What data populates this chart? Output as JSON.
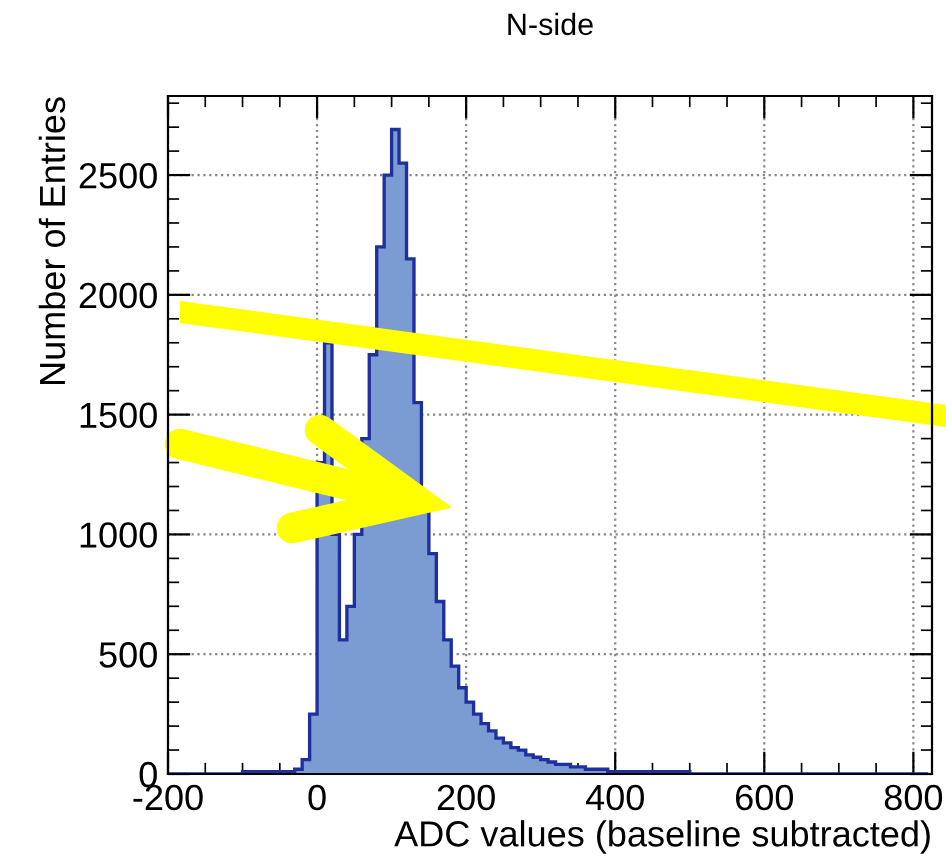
{
  "chart_data": {
    "type": "histogram",
    "title": "N-side",
    "xlabel": "ADC values (baseline subtracted)",
    "ylabel": "Number of Entries",
    "bins": [
      -200,
      -190,
      -180,
      -170,
      -160,
      -150,
      -140,
      -130,
      -120,
      -110,
      -100,
      -90,
      -80,
      -70,
      -60,
      -50,
      -40,
      -30,
      -20,
      -10,
      0,
      10,
      20,
      30,
      40,
      50,
      60,
      70,
      80,
      90,
      100,
      110,
      120,
      130,
      140,
      150,
      160,
      170,
      180,
      190,
      200,
      210,
      220,
      230,
      240,
      250,
      260,
      270,
      280,
      290,
      300,
      310,
      320,
      330,
      340,
      350,
      360,
      370,
      380,
      390,
      400,
      410,
      420,
      430,
      440,
      450,
      460,
      470,
      480,
      490,
      500,
      510,
      520,
      530,
      540,
      550,
      560,
      570,
      580,
      590,
      600,
      610,
      620,
      630,
      640,
      650,
      660,
      670,
      680,
      690,
      700,
      710,
      720,
      730,
      740,
      750,
      760,
      770,
      780,
      790,
      800,
      810,
      820
    ],
    "values": [
      0,
      0,
      0,
      0,
      0,
      0,
      0,
      0,
      0,
      0,
      10,
      10,
      10,
      10,
      10,
      10,
      10,
      20,
      60,
      250,
      1300,
      1800,
      1000,
      560,
      700,
      1000,
      1400,
      1750,
      2200,
      2500,
      2690,
      2550,
      2150,
      1550,
      1150,
      920,
      720,
      560,
      450,
      360,
      300,
      250,
      210,
      180,
      150,
      130,
      110,
      100,
      80,
      70,
      60,
      50,
      40,
      40,
      30,
      30,
      20,
      20,
      20,
      10,
      10,
      10,
      10,
      10,
      10,
      10,
      10,
      10,
      10,
      10,
      0,
      0,
      0,
      0,
      0,
      0,
      0,
      0,
      0,
      0,
      0,
      0,
      0,
      0,
      0,
      0,
      0,
      0,
      0,
      0,
      0,
      0,
      0,
      0,
      0,
      0,
      0,
      0,
      0,
      0,
      0,
      0
    ],
    "color": "#7b9bd3",
    "xlim": [
      -200,
      825
    ],
    "ylim": [
      0,
      2830
    ],
    "xticks": [
      -200,
      0,
      200,
      400,
      600,
      800
    ],
    "yticks": [
      0,
      500,
      1000,
      1500,
      2000,
      2500
    ],
    "grid": true
  }
}
